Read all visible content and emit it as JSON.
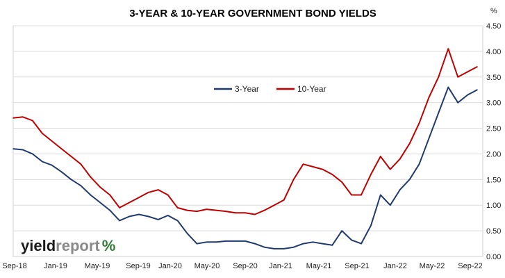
{
  "chart_data": {
    "type": "line",
    "title": "3-YEAR & 10-YEAR GOVERNMENT BOND YIELDS",
    "ylabel": "%",
    "ylim": [
      0,
      4.5
    ],
    "yticks": [
      "0.00",
      "0.50",
      "1.00",
      "1.50",
      "2.00",
      "2.50",
      "3.00",
      "3.50",
      "4.00",
      "4.50"
    ],
    "x_tick_labels": [
      "Sep-18",
      "Jan-19",
      "May-19",
      "Sep-19",
      "Jan-20",
      "May-20",
      "Sep-20",
      "Jan-21",
      "May-21",
      "Sep-21",
      "Jan-22",
      "May-22",
      "Sep-22"
    ],
    "x_range": [
      "2018-09",
      "2022-09"
    ],
    "legend_position": "top-center",
    "grid": "horizontal",
    "colors": {
      "three_year": "#1f3a6e",
      "ten_year": "#c00000"
    },
    "series": [
      {
        "name": "3-Year",
        "color": "#1f3a6e",
        "x": [
          "2018-09",
          "2018-10",
          "2018-11",
          "2018-12",
          "2019-01",
          "2019-02",
          "2019-03",
          "2019-04",
          "2019-05",
          "2019-06",
          "2019-07",
          "2019-08",
          "2019-09",
          "2019-10",
          "2019-11",
          "2019-12",
          "2020-01",
          "2020-02",
          "2020-03",
          "2020-04",
          "2020-05",
          "2020-06",
          "2020-07",
          "2020-08",
          "2020-09",
          "2020-10",
          "2020-11",
          "2020-12",
          "2021-01",
          "2021-02",
          "2021-03",
          "2021-04",
          "2021-05",
          "2021-06",
          "2021-07",
          "2021-08",
          "2021-09",
          "2021-10",
          "2021-11",
          "2021-12",
          "2022-01",
          "2022-02",
          "2022-03",
          "2022-04",
          "2022-05",
          "2022-06",
          "2022-07",
          "2022-08",
          "2022-09"
        ],
        "values": [
          2.1,
          2.08,
          2.0,
          1.85,
          1.78,
          1.65,
          1.5,
          1.38,
          1.2,
          1.05,
          0.9,
          0.7,
          0.78,
          0.82,
          0.78,
          0.72,
          0.8,
          0.7,
          0.45,
          0.25,
          0.28,
          0.28,
          0.3,
          0.3,
          0.3,
          0.25,
          0.18,
          0.15,
          0.15,
          0.18,
          0.25,
          0.28,
          0.25,
          0.22,
          0.5,
          0.32,
          0.25,
          0.6,
          1.2,
          1.0,
          1.3,
          1.5,
          1.8,
          2.3,
          2.8,
          3.3,
          3.0,
          3.15,
          3.25
        ]
      },
      {
        "name": "10-Year",
        "color": "#c00000",
        "x": [
          "2018-09",
          "2018-10",
          "2018-11",
          "2018-12",
          "2019-01",
          "2019-02",
          "2019-03",
          "2019-04",
          "2019-05",
          "2019-06",
          "2019-07",
          "2019-08",
          "2019-09",
          "2019-10",
          "2019-11",
          "2019-12",
          "2020-01",
          "2020-02",
          "2020-03",
          "2020-04",
          "2020-05",
          "2020-06",
          "2020-07",
          "2020-08",
          "2020-09",
          "2020-10",
          "2020-11",
          "2020-12",
          "2021-01",
          "2021-02",
          "2021-03",
          "2021-04",
          "2021-05",
          "2021-06",
          "2021-07",
          "2021-08",
          "2021-09",
          "2021-10",
          "2021-11",
          "2021-12",
          "2022-01",
          "2022-02",
          "2022-03",
          "2022-04",
          "2022-05",
          "2022-06",
          "2022-07",
          "2022-08",
          "2022-09"
        ],
        "values": [
          2.7,
          2.72,
          2.65,
          2.4,
          2.25,
          2.1,
          1.95,
          1.8,
          1.55,
          1.35,
          1.2,
          0.95,
          1.05,
          1.15,
          1.25,
          1.3,
          1.2,
          0.95,
          0.9,
          0.88,
          0.92,
          0.9,
          0.88,
          0.85,
          0.85,
          0.82,
          0.9,
          1.0,
          1.1,
          1.5,
          1.8,
          1.75,
          1.7,
          1.6,
          1.45,
          1.2,
          1.2,
          1.6,
          1.95,
          1.7,
          1.9,
          2.2,
          2.6,
          3.1,
          3.5,
          4.05,
          3.5,
          3.6,
          3.7
        ]
      }
    ]
  },
  "logo": {
    "text_main": "yieldreport",
    "text_symbol": "%"
  }
}
